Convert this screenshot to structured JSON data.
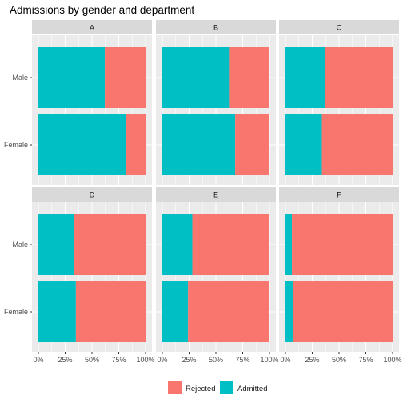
{
  "chart_data": {
    "type": "bar",
    "orientation": "horizontal",
    "stacked": true,
    "title": "Admissions by gender and department",
    "xlabel": "",
    "ylabel": "",
    "xlim": [
      0,
      100
    ],
    "x_ticks": [
      "0%",
      "25%",
      "50%",
      "75%",
      "100%"
    ],
    "categories": [
      "Male",
      "Female"
    ],
    "legend": {
      "position": "bottom",
      "entries": [
        {
          "name": "Rejected",
          "color": "#F8766D"
        },
        {
          "name": "Admitted",
          "color": "#00BFC4"
        }
      ]
    },
    "grid": true,
    "panel_background": "#EBEBEB",
    "strip_background": "#D9D9D9",
    "facets": [
      {
        "label": "A",
        "admitted": {
          "Male": 62,
          "Female": 82
        },
        "rejected": {
          "Male": 38,
          "Female": 18
        }
      },
      {
        "label": "B",
        "admitted": {
          "Male": 63,
          "Female": 68
        },
        "rejected": {
          "Male": 37,
          "Female": 32
        }
      },
      {
        "label": "C",
        "admitted": {
          "Male": 37,
          "Female": 34
        },
        "rejected": {
          "Male": 63,
          "Female": 66
        }
      },
      {
        "label": "D",
        "admitted": {
          "Male": 33,
          "Female": 35
        },
        "rejected": {
          "Male": 67,
          "Female": 65
        }
      },
      {
        "label": "E",
        "admitted": {
          "Male": 28,
          "Female": 24
        },
        "rejected": {
          "Male": 72,
          "Female": 76
        }
      },
      {
        "label": "F",
        "admitted": {
          "Male": 6,
          "Female": 7
        },
        "rejected": {
          "Male": 94,
          "Female": 93
        }
      }
    ]
  }
}
